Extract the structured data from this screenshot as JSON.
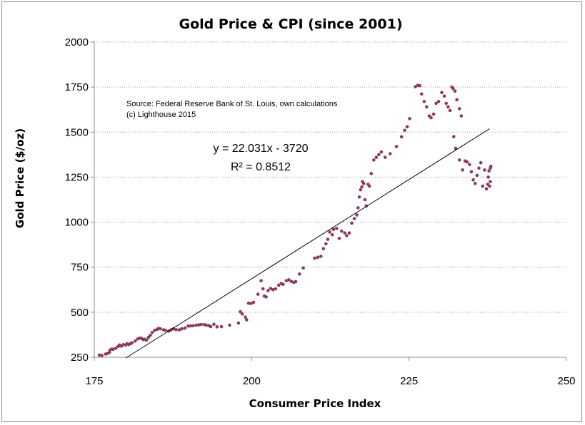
{
  "chart_data": {
    "type": "scatter",
    "title": "Gold Price & CPI (since 2001)",
    "xlabel": "Consumer Price Index",
    "ylabel": "Gold Price ($/oz)",
    "xlim": [
      175,
      250
    ],
    "ylim": [
      250,
      2000
    ],
    "xticks": [
      175,
      200,
      225,
      250
    ],
    "yticks": [
      250,
      500,
      750,
      1000,
      1250,
      1500,
      1750,
      2000
    ],
    "grid": "horizontal dotted",
    "annotations": [
      "Source: Federal Reserve Bank of St. Louis, own calculations",
      "(c) Lighthouse 2015"
    ],
    "trendline": {
      "equation": "y = 22.031x - 3720",
      "r_squared": "R² = 0.8512",
      "slope": 22.031,
      "intercept": -3720,
      "x_range": [
        180,
        237.8
      ]
    },
    "marker_color": "#8b3a62",
    "points": [
      [
        175.8,
        262
      ],
      [
        176.2,
        260
      ],
      [
        176.8,
        268
      ],
      [
        177.1,
        271
      ],
      [
        177.4,
        277
      ],
      [
        177.5,
        290
      ],
      [
        177.8,
        296
      ],
      [
        178.0,
        294
      ],
      [
        178.4,
        300
      ],
      [
        178.8,
        310
      ],
      [
        179.0,
        318
      ],
      [
        179.3,
        312
      ],
      [
        179.6,
        320
      ],
      [
        180.0,
        318
      ],
      [
        180.2,
        325
      ],
      [
        180.5,
        321
      ],
      [
        180.8,
        327
      ],
      [
        181.0,
        330
      ],
      [
        181.5,
        340
      ],
      [
        181.9,
        352
      ],
      [
        182.2,
        356
      ],
      [
        182.5,
        355
      ],
      [
        182.8,
        348
      ],
      [
        183.0,
        350
      ],
      [
        183.3,
        345
      ],
      [
        183.6,
        360
      ],
      [
        183.9,
        372
      ],
      [
        184.2,
        388
      ],
      [
        184.6,
        400
      ],
      [
        185.0,
        405
      ],
      [
        185.2,
        410
      ],
      [
        185.5,
        408
      ],
      [
        186.0,
        402
      ],
      [
        186.3,
        400
      ],
      [
        186.8,
        395
      ],
      [
        187.2,
        402
      ],
      [
        187.6,
        408
      ],
      [
        188.0,
        403
      ],
      [
        188.5,
        402
      ],
      [
        188.9,
        408
      ],
      [
        189.4,
        412
      ],
      [
        189.9,
        423
      ],
      [
        190.3,
        424
      ],
      [
        190.7,
        425
      ],
      [
        191.2,
        428
      ],
      [
        191.6,
        430
      ],
      [
        192.0,
        432
      ],
      [
        192.5,
        431
      ],
      [
        192.8,
        428
      ],
      [
        193.2,
        426
      ],
      [
        193.5,
        420
      ],
      [
        194.0,
        433
      ],
      [
        194.5,
        419
      ],
      [
        195.2,
        420
      ],
      [
        196.5,
        428
      ],
      [
        197.9,
        440
      ],
      [
        198.2,
        503
      ],
      [
        198.5,
        490
      ],
      [
        199.0,
        473
      ],
      [
        199.2,
        458
      ],
      [
        199.5,
        550
      ],
      [
        199.9,
        549
      ],
      [
        200.3,
        555
      ],
      [
        201.0,
        600
      ],
      [
        201.5,
        675
      ],
      [
        201.8,
        630
      ],
      [
        202.0,
        590
      ],
      [
        202.3,
        585
      ],
      [
        202.6,
        620
      ],
      [
        203.0,
        632
      ],
      [
        203.4,
        625
      ],
      [
        203.8,
        630
      ],
      [
        204.3,
        650
      ],
      [
        204.7,
        660
      ],
      [
        205.0,
        655
      ],
      [
        205.5,
        675
      ],
      [
        205.9,
        680
      ],
      [
        206.3,
        671
      ],
      [
        206.7,
        665
      ],
      [
        207.0,
        670
      ],
      [
        207.6,
        712
      ],
      [
        208.2,
        746
      ],
      [
        210.0,
        800
      ],
      [
        210.5,
        805
      ],
      [
        211.0,
        810
      ],
      [
        211.4,
        853
      ],
      [
        211.8,
        880
      ],
      [
        212.1,
        905
      ],
      [
        212.4,
        945
      ],
      [
        212.8,
        930
      ],
      [
        213.0,
        960
      ],
      [
        213.5,
        965
      ],
      [
        213.9,
        910
      ],
      [
        214.3,
        950
      ],
      [
        214.8,
        940
      ],
      [
        215.1,
        925
      ],
      [
        215.5,
        940
      ],
      [
        215.9,
        995
      ],
      [
        216.3,
        1020
      ],
      [
        216.7,
        1040
      ],
      [
        216.9,
        1080
      ],
      [
        217.1,
        1140
      ],
      [
        217.3,
        1180
      ],
      [
        217.5,
        1196
      ],
      [
        217.6,
        1225
      ],
      [
        217.8,
        1215
      ],
      [
        218.0,
        1125
      ],
      [
        218.2,
        1090
      ],
      [
        218.5,
        1210
      ],
      [
        218.7,
        1200
      ],
      [
        219.0,
        1270
      ],
      [
        219.4,
        1345
      ],
      [
        219.8,
        1360
      ],
      [
        220.2,
        1375
      ],
      [
        220.6,
        1390
      ],
      [
        221.2,
        1360
      ],
      [
        222.0,
        1380
      ],
      [
        223.0,
        1420
      ],
      [
        223.8,
        1474
      ],
      [
        224.3,
        1510
      ],
      [
        224.7,
        1530
      ],
      [
        225.1,
        1575
      ],
      [
        226.0,
        1752
      ],
      [
        226.4,
        1760
      ],
      [
        226.7,
        1758
      ],
      [
        227.0,
        1712
      ],
      [
        227.4,
        1670
      ],
      [
        227.8,
        1640
      ],
      [
        228.2,
        1590
      ],
      [
        228.5,
        1580
      ],
      [
        228.9,
        1600
      ],
      [
        229.3,
        1660
      ],
      [
        229.7,
        1670
      ],
      [
        230.2,
        1720
      ],
      [
        230.6,
        1700
      ],
      [
        230.9,
        1660
      ],
      [
        231.2,
        1640
      ],
      [
        231.5,
        1620
      ],
      [
        231.8,
        1750
      ],
      [
        232.0,
        1742
      ],
      [
        232.3,
        1728
      ],
      [
        232.6,
        1680
      ],
      [
        233.0,
        1630
      ],
      [
        233.3,
        1590
      ],
      [
        232.1,
        1475
      ],
      [
        232.4,
        1410
      ],
      [
        233.0,
        1345
      ],
      [
        233.5,
        1290
      ],
      [
        233.9,
        1340
      ],
      [
        234.2,
        1335
      ],
      [
        234.6,
        1320
      ],
      [
        234.9,
        1280
      ],
      [
        235.2,
        1235
      ],
      [
        235.5,
        1215
      ],
      [
        235.8,
        1260
      ],
      [
        236.1,
        1300
      ],
      [
        236.4,
        1330
      ],
      [
        236.7,
        1200
      ],
      [
        237.0,
        1290
      ],
      [
        237.3,
        1185
      ],
      [
        237.5,
        1210
      ],
      [
        237.7,
        1285
      ],
      [
        237.9,
        1300
      ],
      [
        238.0,
        1310
      ],
      [
        237.6,
        1250
      ],
      [
        237.9,
        1225
      ],
      [
        237.8,
        1200
      ]
    ]
  }
}
